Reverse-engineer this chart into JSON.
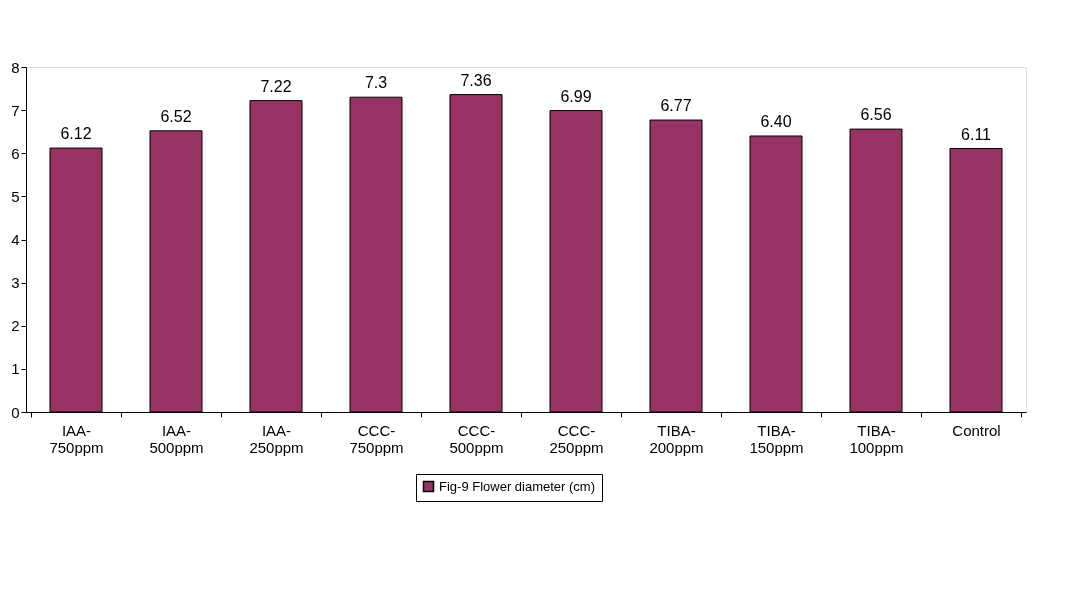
{
  "chart_data": {
    "type": "bar",
    "categories": [
      "IAA-750ppm",
      "IAA-500ppm",
      "IAA-250ppm",
      "CCC-750ppm",
      "CCC-500ppm",
      "CCC-250ppm",
      "TIBA-200ppm",
      "TIBA-150ppm",
      "TIBA-100ppm",
      "Control"
    ],
    "series": [
      {
        "name": "Fig-9 Flower diameter (cm)",
        "color": "#993366",
        "values": [
          6.12,
          6.52,
          7.22,
          7.3,
          7.36,
          6.99,
          6.77,
          6.4,
          6.56,
          6.11
        ],
        "value_labels": [
          "6.12",
          "6.52",
          "7.22",
          "7.3",
          "7.36",
          "6.99",
          "6.77",
          "6.40",
          "6.56",
          "6.11"
        ]
      }
    ],
    "ylim": [
      0,
      8
    ],
    "yticks": [
      0,
      1,
      2,
      3,
      4,
      5,
      6,
      7,
      8
    ],
    "grid": false,
    "legend": "bottom"
  }
}
